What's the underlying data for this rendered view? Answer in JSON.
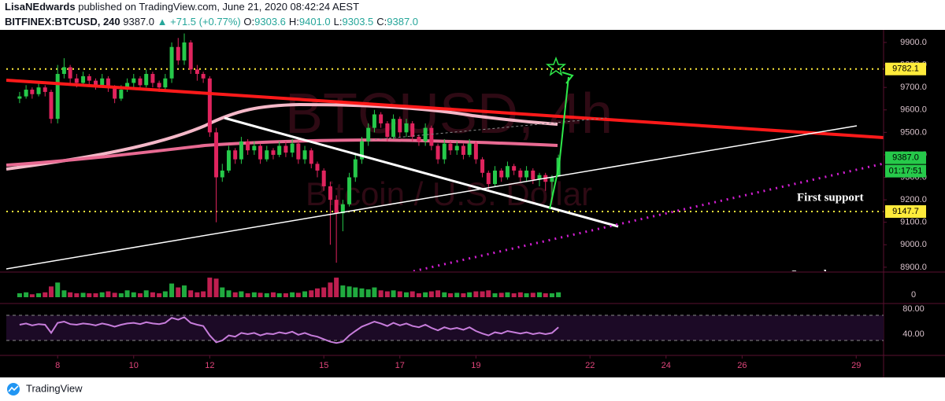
{
  "header": {
    "author": "LisaNEdwards",
    "published": "published on TradingView.com, June 21, 2020 08:42:24 AEST",
    "symbol": "BITFINEX:BTCUSD, 240",
    "last": "9387.0",
    "change": "▲ +71.5 (+0.77%)",
    "ohlc": [
      {
        "k": "O:",
        "v": "9303.6"
      },
      {
        "k": "H:",
        "v": "9401.0"
      },
      {
        "k": "L:",
        "v": "9303.5"
      },
      {
        "k": "C:",
        "v": "9387.0"
      }
    ]
  },
  "chart_data": {
    "type": "candlestick",
    "watermark": "BTCUSD, 4h",
    "watermark_sub": "Bitcoin / U.S. Dollar",
    "up_color": "#26c94a",
    "down_color": "#e0245e",
    "xlim": [
      6.65,
      29.72
    ],
    "xticks": [
      8,
      10,
      12,
      15,
      17,
      19,
      22,
      24,
      26,
      29
    ],
    "ylim": [
      8882,
      9949
    ],
    "yticks": [
      {
        "value": 8900,
        "label": "8900.0"
      },
      {
        "value": 9000,
        "label": "9000.0"
      },
      {
        "value": 9100,
        "label": "9100.0"
      },
      {
        "value": 9200,
        "label": "9200.0"
      },
      {
        "value": 9300,
        "label": "9300.0"
      },
      {
        "value": 9400,
        "label": "9400.0"
      },
      {
        "value": 9500,
        "label": "9500.0"
      },
      {
        "value": 9600,
        "label": "9600.0"
      },
      {
        "value": 9700,
        "label": "9700.0"
      },
      {
        "value": 9800,
        "label": "9800.0"
      },
      {
        "value": 9900,
        "label": "9900.0"
      }
    ],
    "levels": [
      9782.1,
      9147.7
    ],
    "level_color": "#ffeb3b",
    "last_price": {
      "value": 9387,
      "label": "9387.0"
    },
    "countdown": "01:17:51",
    "annotations": [
      "First support",
      "Second support"
    ],
    "candles": {
      "x": [
        7,
        7.17,
        7.33,
        7.5,
        7.67,
        7.83,
        8,
        8.17,
        8.33,
        8.5,
        8.67,
        8.83,
        9,
        9.17,
        9.33,
        9.5,
        9.67,
        9.83,
        10,
        10.17,
        10.33,
        10.5,
        10.67,
        10.83,
        11,
        11.17,
        11.33,
        11.5,
        11.67,
        11.83,
        12,
        12.17,
        12.33,
        12.5,
        12.67,
        12.83,
        13,
        13.17,
        13.33,
        13.5,
        13.67,
        13.83,
        14,
        14.17,
        14.33,
        14.5,
        14.67,
        14.83,
        15,
        15.17,
        15.33,
        15.5,
        15.67,
        15.83,
        16,
        16.17,
        16.33,
        16.5,
        16.67,
        16.83,
        17,
        17.17,
        17.33,
        17.5,
        17.67,
        17.83,
        18,
        18.17,
        18.33,
        18.5,
        18.67,
        18.83,
        19,
        19.17,
        19.33,
        19.5,
        19.67,
        19.83,
        20,
        20.17,
        20.33,
        20.5,
        20.67,
        20.83,
        21,
        21.17
      ],
      "open": [
        9650,
        9660,
        9690,
        9670,
        9700,
        9680,
        9560,
        9760,
        9790,
        9740,
        9720,
        9750,
        9730,
        9710,
        9740,
        9700,
        9650,
        9690,
        9720,
        9740,
        9710,
        9760,
        9720,
        9700,
        9740,
        9880,
        9820,
        9900,
        9780,
        9760,
        9740,
        9500,
        9300,
        9330,
        9420,
        9380,
        9460,
        9420,
        9440,
        9380,
        9420,
        9400,
        9440,
        9410,
        9450,
        9380,
        9420,
        9360,
        9330,
        9260,
        9200,
        9140,
        9180,
        9300,
        9380,
        9460,
        9520,
        9580,
        9540,
        9480,
        9560,
        9500,
        9540,
        9480,
        9460,
        9520,
        9440,
        9380,
        9450,
        9420,
        9440,
        9400,
        9450,
        9380,
        9320,
        9270,
        9330,
        9300,
        9350,
        9330,
        9300,
        9330,
        9290,
        9310,
        9280,
        9303.6
      ],
      "high": [
        9680,
        9710,
        9700,
        9720,
        9710,
        9690,
        9800,
        9830,
        9800,
        9760,
        9770,
        9760,
        9740,
        9760,
        9750,
        9710,
        9710,
        9740,
        9760,
        9750,
        9780,
        9770,
        9730,
        9760,
        9900,
        9920,
        9940,
        9910,
        9800,
        9770,
        9750,
        9520,
        9360,
        9440,
        9430,
        9480,
        9470,
        9460,
        9450,
        9440,
        9430,
        9460,
        9460,
        9470,
        9460,
        9440,
        9430,
        9370,
        9340,
        9280,
        9220,
        9200,
        9320,
        9400,
        9480,
        9540,
        9600,
        9590,
        9550,
        9580,
        9570,
        9560,
        9550,
        9490,
        9540,
        9530,
        9450,
        9470,
        9460,
        9460,
        9450,
        9470,
        9460,
        9390,
        9330,
        9350,
        9340,
        9370,
        9360,
        9340,
        9350,
        9340,
        9320,
        9320,
        9310,
        9401
      ],
      "low": [
        9630,
        9650,
        9650,
        9660,
        9660,
        9540,
        9540,
        9740,
        9720,
        9700,
        9710,
        9710,
        9690,
        9700,
        9680,
        9630,
        9640,
        9680,
        9700,
        9690,
        9700,
        9700,
        9680,
        9690,
        9720,
        9800,
        9800,
        9760,
        9730,
        9720,
        9480,
        9100,
        9280,
        9320,
        9360,
        9360,
        9400,
        9400,
        9360,
        9370,
        9380,
        9390,
        9390,
        9390,
        9360,
        9360,
        9340,
        9300,
        9240,
        9000,
        8920,
        9060,
        9170,
        9280,
        9360,
        9440,
        9500,
        9520,
        9460,
        9470,
        9480,
        9480,
        9460,
        9440,
        9440,
        9420,
        9360,
        9360,
        9400,
        9400,
        9380,
        9390,
        9360,
        9300,
        9240,
        9260,
        9280,
        9290,
        9310,
        9280,
        9280,
        9270,
        9260,
        9240,
        9200,
        9303.5
      ],
      "close": [
        9660,
        9690,
        9670,
        9700,
        9680,
        9560,
        9760,
        9790,
        9740,
        9720,
        9750,
        9730,
        9710,
        9740,
        9700,
        9650,
        9690,
        9720,
        9740,
        9710,
        9760,
        9720,
        9700,
        9740,
        9880,
        9820,
        9900,
        9780,
        9760,
        9740,
        9500,
        9300,
        9330,
        9420,
        9380,
        9460,
        9420,
        9440,
        9380,
        9420,
        9400,
        9440,
        9410,
        9450,
        9380,
        9420,
        9360,
        9330,
        9260,
        9200,
        9140,
        9180,
        9300,
        9380,
        9460,
        9520,
        9580,
        9540,
        9480,
        9560,
        9500,
        9540,
        9480,
        9460,
        9520,
        9440,
        9380,
        9450,
        9420,
        9440,
        9400,
        9450,
        9380,
        9320,
        9270,
        9330,
        9300,
        9350,
        9330,
        9300,
        9330,
        9290,
        9310,
        9280,
        9300,
        9387
      ]
    },
    "volume": {
      "ylim": [
        0,
        45
      ],
      "yticks": [
        0
      ],
      "values": [
        8,
        10,
        6,
        8,
        10,
        22,
        30,
        14,
        10,
        8,
        9,
        8,
        8,
        10,
        12,
        9,
        8,
        14,
        10,
        8,
        14,
        10,
        8,
        12,
        28,
        20,
        24,
        14,
        10,
        12,
        40,
        38,
        20,
        14,
        10,
        12,
        8,
        10,
        9,
        8,
        10,
        8,
        8,
        10,
        9,
        12,
        14,
        18,
        20,
        30,
        40,
        24,
        22,
        20,
        18,
        16,
        20,
        14,
        12,
        14,
        12,
        10,
        12,
        8,
        10,
        12,
        14,
        10,
        8,
        9,
        8,
        10,
        12,
        12,
        14,
        8,
        9,
        10,
        8,
        10,
        8,
        9,
        10,
        8,
        8,
        10
      ]
    },
    "rsi": {
      "color": "#c77ddb",
      "ylim": [
        8.75,
        86.25
      ],
      "yticks": [
        {
          "value": 80,
          "label": "80.00"
        },
        {
          "value": 40,
          "label": "40.00"
        }
      ],
      "bands": [
        70,
        30
      ],
      "values": [
        55,
        57,
        54,
        56,
        55,
        42,
        58,
        60,
        56,
        55,
        57,
        56,
        54,
        57,
        55,
        52,
        55,
        57,
        58,
        56,
        59,
        57,
        56,
        58,
        66,
        63,
        67,
        58,
        55,
        53,
        38,
        27,
        30,
        38,
        36,
        42,
        40,
        42,
        38,
        41,
        40,
        43,
        41,
        44,
        39,
        42,
        38,
        36,
        32,
        28,
        26,
        28,
        38,
        45,
        52,
        56,
        60,
        57,
        53,
        58,
        54,
        57,
        53,
        51,
        55,
        50,
        46,
        51,
        48,
        50,
        47,
        51,
        45,
        41,
        38,
        43,
        41,
        45,
        43,
        41,
        43,
        40,
        42,
        40,
        42,
        51
      ]
    }
  },
  "footer": {
    "brand": "TradingView"
  }
}
